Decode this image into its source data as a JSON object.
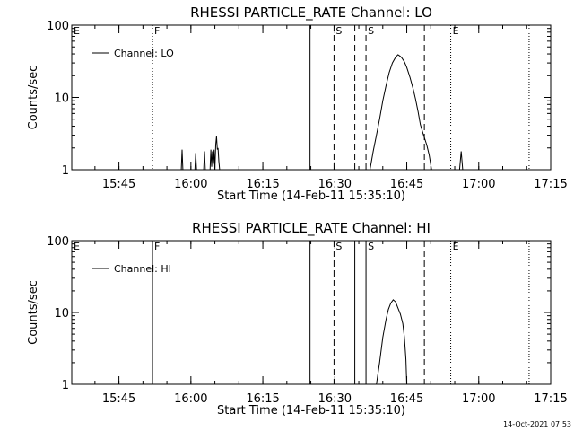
{
  "footer_timestamp": "14-Oct-2021 07:53",
  "colors": {
    "background": "#ffffff",
    "foreground": "#000000"
  },
  "chart_data": [
    {
      "type": "line",
      "title": "RHESSI PARTICLE_RATE Channel: LO",
      "xlabel": "Start Time (14-Feb-11 15:35:10)",
      "ylabel": "Counts/sec",
      "y_scale": "log",
      "ylim": [
        1,
        100
      ],
      "y_ticks": [
        1,
        10,
        100
      ],
      "y_tick_labels": [
        "1",
        "10",
        "100"
      ],
      "xlim": [
        "15:35:10",
        "17:15:00"
      ],
      "x_ticks": [
        "15:45",
        "16:00",
        "16:15",
        "16:30",
        "16:45",
        "17:00",
        "17:15"
      ],
      "legend": {
        "entries": [
          "Channel: LO"
        ],
        "placement": "top-left"
      },
      "markers": [
        {
          "time": "15:52:00",
          "label": "F",
          "style": "dotted"
        },
        {
          "time": "16:24:50",
          "label": "",
          "style": "solid"
        },
        {
          "time": "16:29:50",
          "label": "S",
          "style": "dashed"
        },
        {
          "time": "16:34:10",
          "label": "",
          "style": "dashed"
        },
        {
          "time": "16:36:30",
          "label": "S",
          "style": "dashed"
        },
        {
          "time": "16:48:40",
          "label": "",
          "style": "dashed"
        },
        {
          "time": "16:54:10",
          "label": "E",
          "style": "dotted"
        },
        {
          "time": "17:10:30",
          "label": "",
          "style": "dotted"
        }
      ],
      "edge_labels": [
        {
          "time": "15:35:10",
          "label": "E"
        }
      ],
      "series": [
        {
          "segments": [
            [
              [
                "15:58:00",
                1
              ],
              [
                "15:58:10",
                1.9
              ],
              [
                "15:58:20",
                1
              ]
            ],
            [
              [
                "16:00:50",
                1
              ],
              [
                "16:01:00",
                1.7
              ],
              [
                "16:01:10",
                1
              ]
            ],
            [
              [
                "16:02:40",
                1
              ],
              [
                "16:02:50",
                1.8
              ],
              [
                "16:03:00",
                1
              ]
            ],
            [
              [
                "16:04:00",
                1
              ],
              [
                "16:04:10",
                1.9
              ],
              [
                "16:04:20",
                1.1
              ],
              [
                "16:04:30",
                1.8
              ],
              [
                "16:04:40",
                1.2
              ],
              [
                "16:04:50",
                1.9
              ],
              [
                "16:05:00",
                1
              ],
              [
                "16:05:10",
                2.2
              ],
              [
                "16:05:20",
                2.9
              ],
              [
                "16:05:30",
                1.9
              ],
              [
                "16:05:40",
                2.0
              ],
              [
                "16:05:50",
                1.3
              ],
              [
                "16:06:00",
                1
              ]
            ],
            [
              [
                "16:37:20",
                1
              ],
              [
                "16:38:00",
                1.8
              ],
              [
                "16:38:40",
                3.0
              ],
              [
                "16:39:20",
                5.0
              ],
              [
                "16:40:00",
                9.0
              ],
              [
                "16:40:40",
                14.5
              ],
              [
                "16:41:20",
                22
              ],
              [
                "16:42:00",
                30
              ],
              [
                "16:42:40",
                36
              ],
              [
                "16:43:10",
                39
              ],
              [
                "16:43:40",
                37
              ],
              [
                "16:44:00",
                35
              ],
              [
                "16:44:30",
                31
              ],
              [
                "16:45:00",
                26
              ],
              [
                "16:45:40",
                19
              ],
              [
                "16:46:20",
                13
              ],
              [
                "16:46:50",
                9.5
              ],
              [
                "16:47:20",
                6.5
              ],
              [
                "16:47:50",
                4.2
              ],
              [
                "16:48:30",
                3.0
              ],
              [
                "16:49:10",
                2.2
              ],
              [
                "16:49:40",
                1.6
              ],
              [
                "16:50:10",
                1
              ]
            ],
            [
              [
                "16:56:00",
                1
              ],
              [
                "16:56:20",
                1.8
              ],
              [
                "16:56:40",
                1
              ]
            ]
          ]
        }
      ]
    },
    {
      "type": "line",
      "title": "RHESSI PARTICLE_RATE Channel: HI",
      "xlabel": "Start Time (14-Feb-11 15:35:10)",
      "ylabel": "Counts/sec",
      "y_scale": "log",
      "ylim": [
        1,
        100
      ],
      "y_ticks": [
        1,
        10,
        100
      ],
      "y_tick_labels": [
        "1",
        "10",
        "100"
      ],
      "xlim": [
        "15:35:10",
        "17:15:00"
      ],
      "x_ticks": [
        "15:45",
        "16:00",
        "16:15",
        "16:30",
        "16:45",
        "17:00",
        "17:15"
      ],
      "legend": {
        "entries": [
          "Channel: HI"
        ],
        "placement": "top-left"
      },
      "markers": [
        {
          "time": "15:52:00",
          "label": "F",
          "style": "solid"
        },
        {
          "time": "16:24:50",
          "label": "",
          "style": "solid"
        },
        {
          "time": "16:29:50",
          "label": "S",
          "style": "dashed"
        },
        {
          "time": "16:34:10",
          "label": "",
          "style": "solid"
        },
        {
          "time": "16:36:30",
          "label": "S",
          "style": "solid"
        },
        {
          "time": "16:48:40",
          "label": "",
          "style": "dashed"
        },
        {
          "time": "16:54:10",
          "label": "E",
          "style": "dotted"
        },
        {
          "time": "17:10:30",
          "label": "",
          "style": "dotted"
        }
      ],
      "edge_labels": [
        {
          "time": "15:35:10",
          "label": "E"
        }
      ],
      "series": [
        {
          "segments": [
            [
              [
                "16:38:40",
                1
              ],
              [
                "16:39:20",
                2.0
              ],
              [
                "16:40:00",
                4.5
              ],
              [
                "16:40:40",
                8.0
              ],
              [
                "16:41:10",
                11
              ],
              [
                "16:41:40",
                13.5
              ],
              [
                "16:42:10",
                15
              ],
              [
                "16:42:40",
                14
              ],
              [
                "16:43:10",
                11.5
              ],
              [
                "16:43:40",
                9.5
              ],
              [
                "16:44:10",
                7.0
              ],
              [
                "16:44:30",
                4.5
              ],
              [
                "16:44:50",
                2.2
              ],
              [
                "16:45:00",
                1
              ]
            ]
          ]
        }
      ]
    }
  ]
}
